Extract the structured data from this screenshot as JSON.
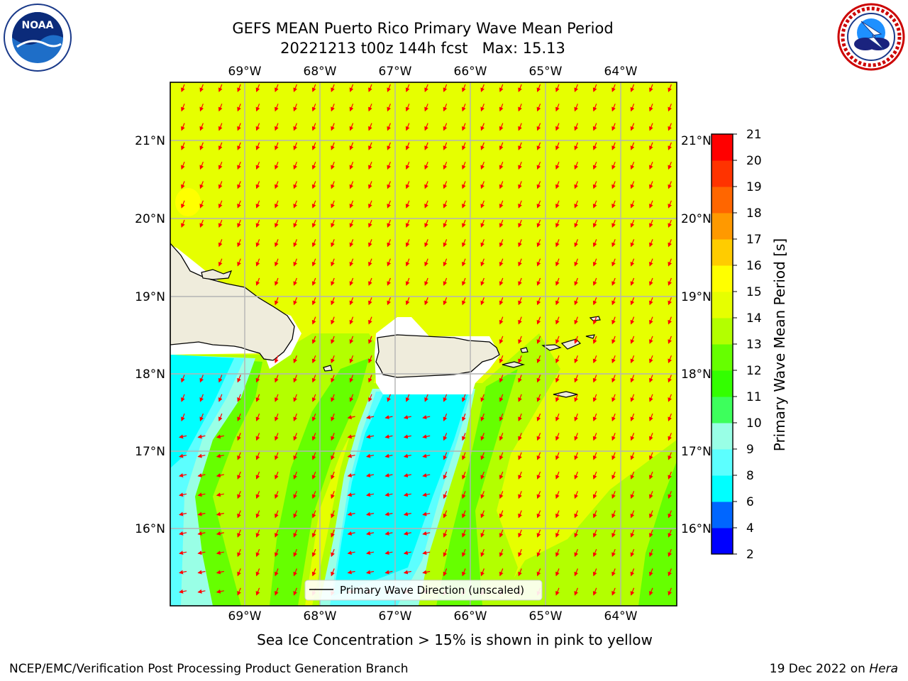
{
  "header": {
    "title_line1": "GEFS MEAN Puerto Rico Primary Wave Mean Period",
    "title_line2": "20221213 t00z 144h fcst   Max: 15.13"
  },
  "logos": {
    "left": {
      "name": "noaa-logo",
      "text": "NOAA"
    },
    "right": {
      "name": "nws-logo"
    }
  },
  "map": {
    "lon_labels": [
      "69°W",
      "68°W",
      "67°W",
      "66°W",
      "65°W",
      "64°W"
    ],
    "lat_labels": [
      "21°N",
      "20°N",
      "19°N",
      "18°N",
      "17°N",
      "16°N"
    ],
    "legend_label": "Primary Wave Direction (unscaled)",
    "arrow_color": "#ff0000",
    "land_color": "#efecdc"
  },
  "colorbar": {
    "label": "Primary Wave Mean Period [s]",
    "ticks": [
      "2",
      "4",
      "6",
      "8",
      "9",
      "10",
      "11",
      "12",
      "13",
      "14",
      "15",
      "16",
      "17",
      "18",
      "19",
      "20",
      "21"
    ],
    "colors": [
      "#0000ff",
      "#0066ff",
      "#00ffff",
      "#5cffff",
      "#99ffe6",
      "#3dff5c",
      "#33ff00",
      "#66ff00",
      "#b3ff00",
      "#e6ff00",
      "#ffff00",
      "#ffcc00",
      "#ff9900",
      "#ff6600",
      "#ff3300",
      "#ff0000"
    ]
  },
  "footnote": "Sea Ice Concentration > 15% is shown in pink to yellow",
  "footer": {
    "left": "NCEP/EMC/Verification Post Processing Product Generation Branch",
    "date": "19 Dec 2022 on ",
    "host": "Hera"
  }
}
